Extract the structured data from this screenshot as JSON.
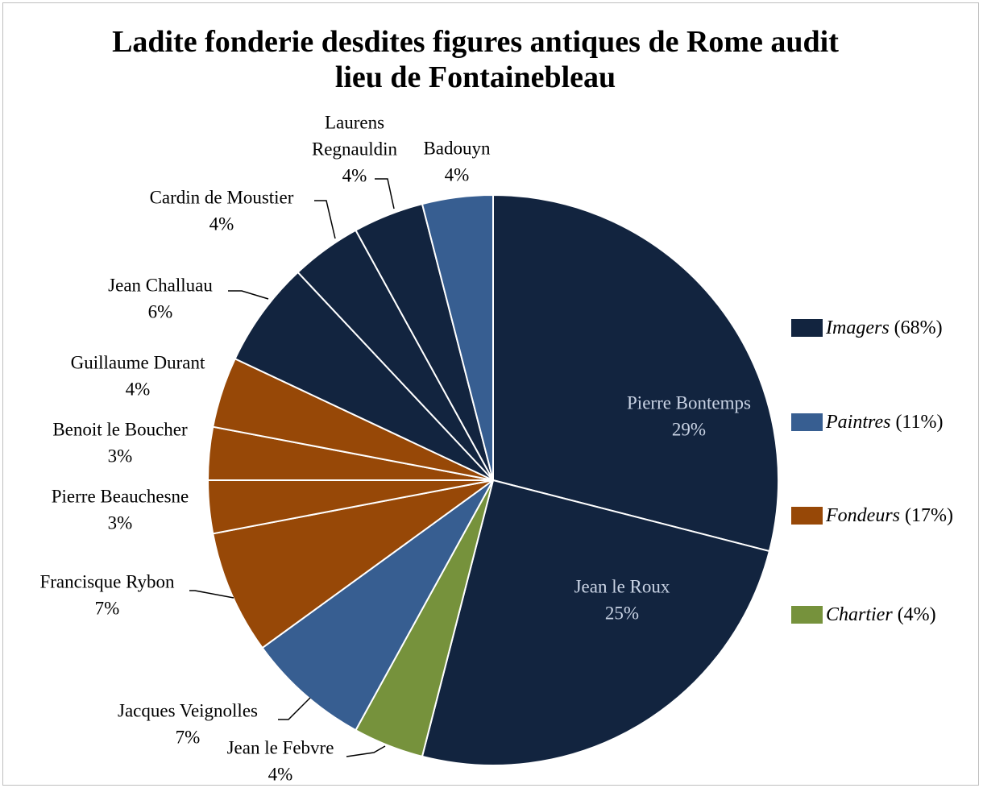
{
  "chart_data": {
    "type": "pie",
    "title": [
      "Ladite fonderie desdites figures antiques de Rome audit",
      "lieu de Fontainebleau"
    ],
    "slices": [
      {
        "label": [
          "Pierre Bontemps",
          "29%"
        ],
        "value": 29,
        "group": "imagers"
      },
      {
        "label": [
          "Jean le Roux",
          "25%"
        ],
        "value": 25,
        "group": "imagers"
      },
      {
        "label": [
          "Jean le Febvre",
          "4%"
        ],
        "value": 4,
        "group": "chartier"
      },
      {
        "label": [
          "Jacques Veignolles",
          "7%"
        ],
        "value": 7,
        "group": "paintres"
      },
      {
        "label": [
          "Francisque Rybon",
          "7%"
        ],
        "value": 7,
        "group": "fondeurs"
      },
      {
        "label": [
          "Pierre Beauchesne",
          "3%"
        ],
        "value": 3,
        "group": "fondeurs"
      },
      {
        "label": [
          "Benoit le Boucher",
          "3%"
        ],
        "value": 3,
        "group": "fondeurs"
      },
      {
        "label": [
          "Guillaume Durant",
          "4%"
        ],
        "value": 4,
        "group": "fondeurs"
      },
      {
        "label": [
          "Jean Challuau",
          "6%"
        ],
        "value": 6,
        "group": "imagers"
      },
      {
        "label": [
          "Cardin de Moustier",
          "4%"
        ],
        "value": 4,
        "group": "imagers"
      },
      {
        "label": [
          "Laurens",
          "Regnauldin",
          "4%"
        ],
        "value": 4,
        "group": "imagers"
      },
      {
        "label": [
          "Badouyn",
          "4%"
        ],
        "value": 4,
        "group": "paintres"
      }
    ],
    "legend": {
      "placement": "right",
      "items": [
        {
          "key": "imagers",
          "name": "Imagers",
          "pct": "(68%)",
          "color": "#12243f"
        },
        {
          "key": "paintres",
          "name": "Paintres",
          "pct": "(11%)",
          "color": "#375e91"
        },
        {
          "key": "fondeurs",
          "name": "Fondeurs",
          "pct": "(17%)",
          "color": "#974807"
        },
        {
          "key": "chartier",
          "name": "Chartier",
          "pct": "(4%)",
          "color": "#76923c"
        }
      ]
    }
  }
}
